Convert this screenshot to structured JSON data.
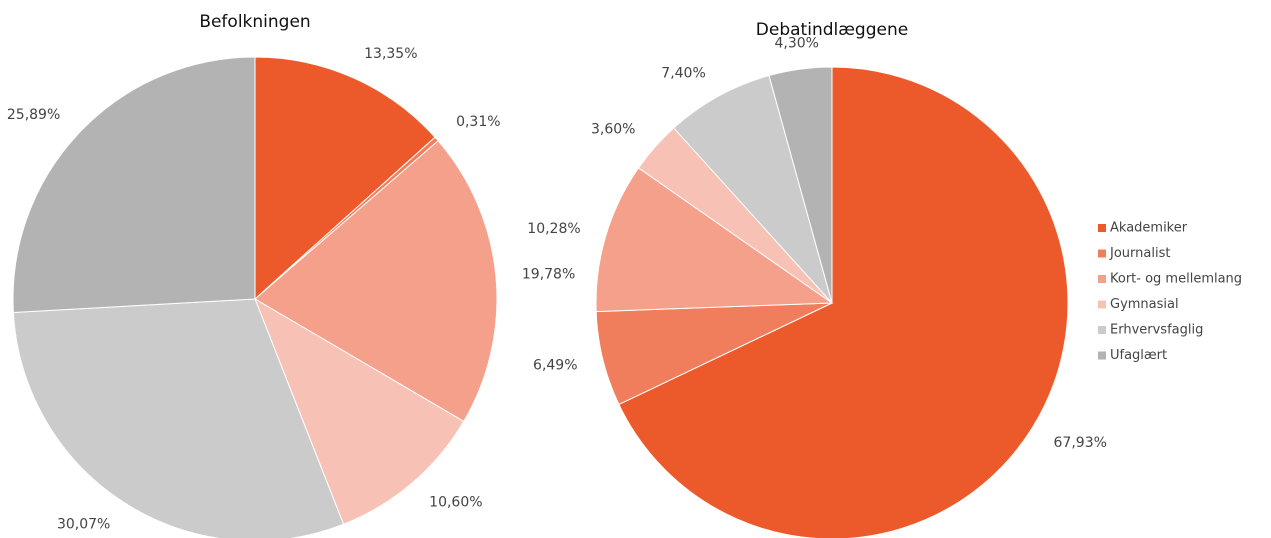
{
  "chart_data": [
    {
      "type": "pie",
      "title": "Befolkningen",
      "categories": [
        "Akademiker",
        "Journalist",
        "Kort- og mellemlang",
        "Gymnasial",
        "Erhvervsfaglig",
        "Ufaglært"
      ],
      "colors": [
        "#ec5a2b",
        "#f07d5c",
        "#f5a08a",
        "#f8c1b5",
        "#cbcbcb",
        "#b3b3b3"
      ],
      "values": [
        13.35,
        0.31,
        19.78,
        10.6,
        30.07,
        25.89
      ],
      "value_labels": [
        "13,35%",
        "0,31%",
        "19,78%",
        "10,60%",
        "30,07%",
        "25,89%"
      ]
    },
    {
      "type": "pie",
      "title": "Debatindlæggene",
      "values": [
        67.93,
        6.49,
        10.28,
        3.6,
        7.4,
        4.3
      ],
      "value_labels": [
        "67,93%",
        "6,49%",
        "10,28%",
        "3,60%",
        "7,40%",
        "4,30%"
      ]
    }
  ]
}
